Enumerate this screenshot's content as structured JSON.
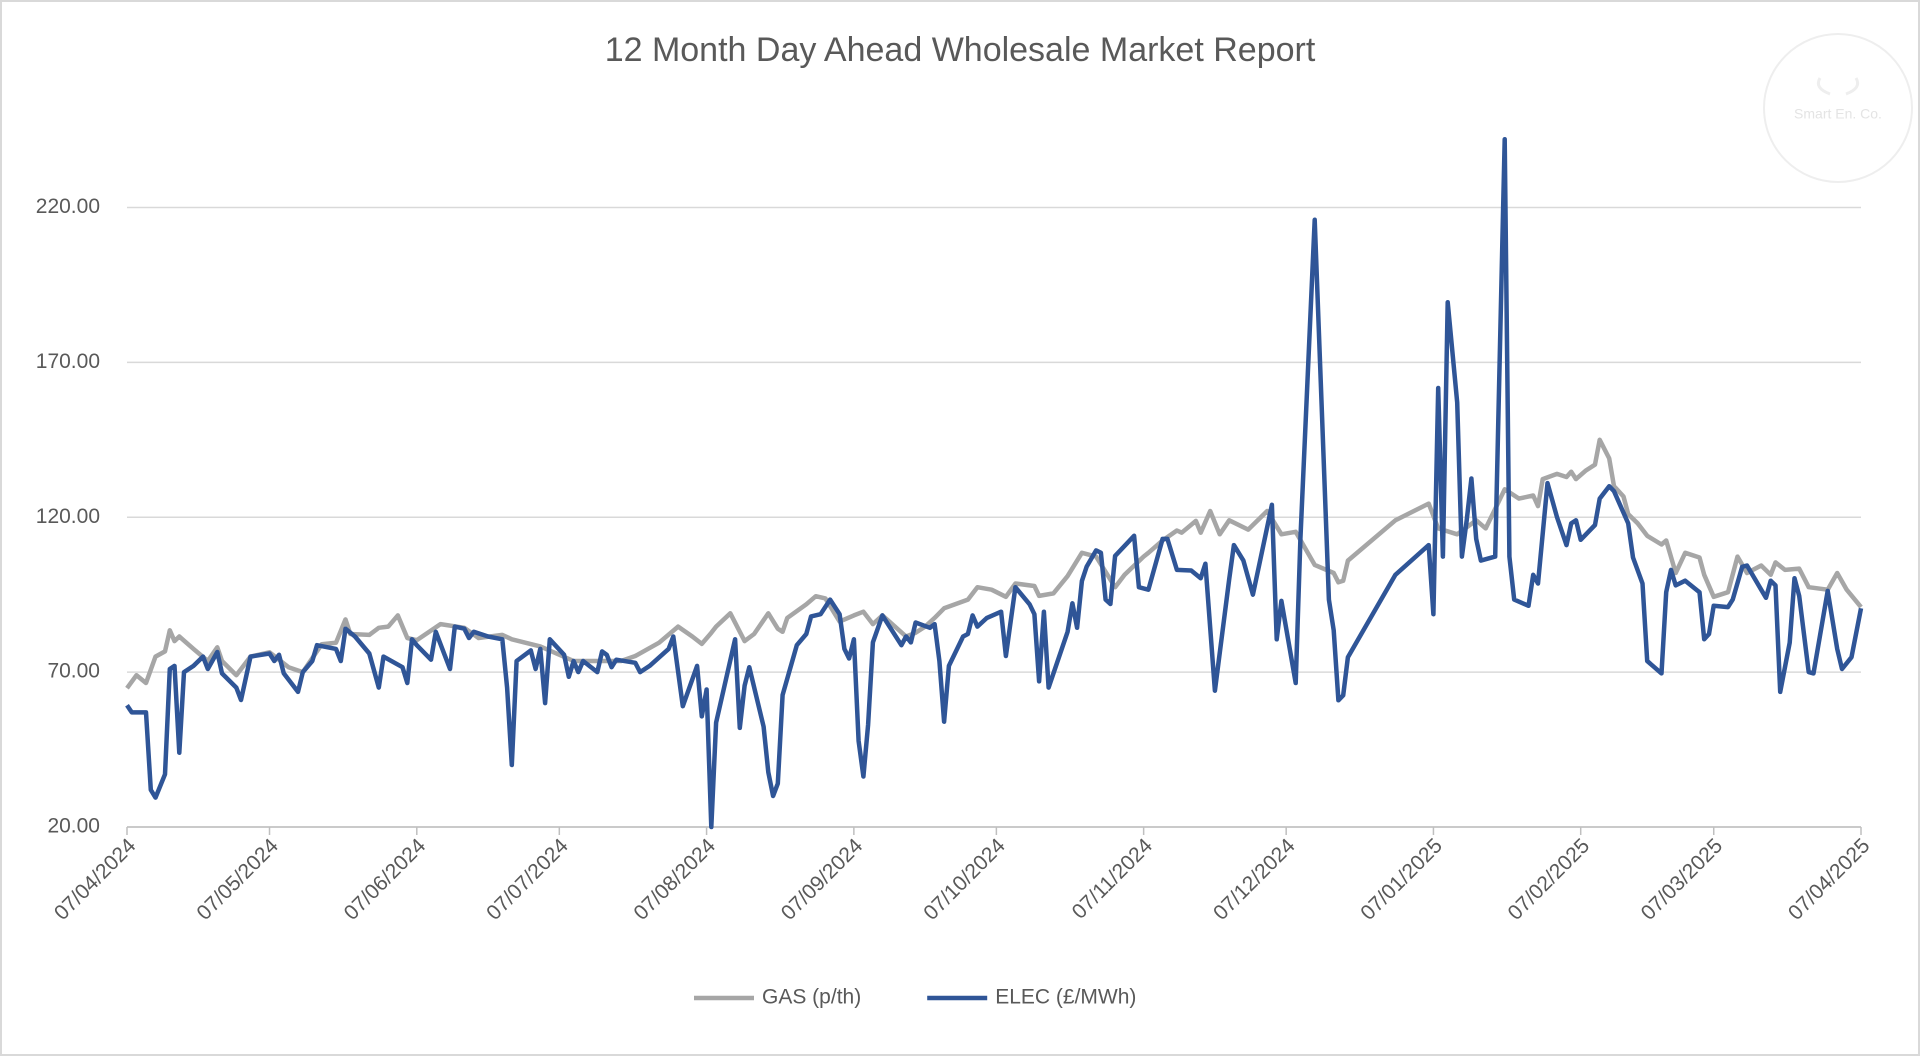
{
  "chart_data": {
    "type": "line",
    "title": "12 Month Day Ahead Wholesale Market Report",
    "watermark": "Smart En. Co.",
    "xlim": [
      "2024-04-07",
      "2025-04-07"
    ],
    "xticks": [
      {
        "value": "2024-04-07",
        "label": "07/04/2024"
      },
      {
        "value": "2024-05-07",
        "label": "07/05/2024"
      },
      {
        "value": "2024-06-07",
        "label": "07/06/2024"
      },
      {
        "value": "2024-07-07",
        "label": "07/07/2024"
      },
      {
        "value": "2024-08-07",
        "label": "07/08/2024"
      },
      {
        "value": "2024-09-07",
        "label": "07/09/2024"
      },
      {
        "value": "2024-10-07",
        "label": "07/10/2024"
      },
      {
        "value": "2024-11-07",
        "label": "07/11/2024"
      },
      {
        "value": "2024-12-07",
        "label": "07/12/2024"
      },
      {
        "value": "2025-01-07",
        "label": "07/01/2025"
      },
      {
        "value": "2025-02-07",
        "label": "07/02/2025"
      },
      {
        "value": "2025-03-07",
        "label": "07/03/2025"
      },
      {
        "value": "2025-04-07",
        "label": "07/04/2025"
      }
    ],
    "ylim": [
      20,
      245
    ],
    "yticks": [
      {
        "value": 20,
        "label": "20.00"
      },
      {
        "value": 70,
        "label": "70.00"
      },
      {
        "value": 120,
        "label": "120.00"
      },
      {
        "value": 170,
        "label": "170.00"
      },
      {
        "value": 220,
        "label": "220.00"
      }
    ],
    "grid": true,
    "legend": "bottom",
    "series": [
      {
        "name": "GAS (p/th)",
        "color": "#a6a6a6",
        "x": [
          "2024-04-07",
          "2024-04-09",
          "2024-04-11",
          "2024-04-13",
          "2024-04-15",
          "2024-04-16",
          "2024-04-17",
          "2024-04-18",
          "2024-04-21",
          "2024-04-24",
          "2024-04-26",
          "2024-04-27",
          "2024-04-30",
          "2024-05-03",
          "2024-05-07",
          "2024-05-11",
          "2024-05-14",
          "2024-05-18",
          "2024-05-21",
          "2024-05-23",
          "2024-05-24",
          "2024-05-28",
          "2024-05-30",
          "2024-06-01",
          "2024-06-03",
          "2024-06-05",
          "2024-06-07",
          "2024-06-12",
          "2024-06-17",
          "2024-06-20",
          "2024-06-25",
          "2024-06-27",
          "2024-07-03",
          "2024-07-10",
          "2024-07-15",
          "2024-07-20",
          "2024-07-23",
          "2024-07-28",
          "2024-08-01",
          "2024-08-04",
          "2024-08-06",
          "2024-08-08",
          "2024-08-09",
          "2024-08-12",
          "2024-08-15",
          "2024-08-17",
          "2024-08-20",
          "2024-08-22",
          "2024-08-23",
          "2024-08-24",
          "2024-08-28",
          "2024-08-30",
          "2024-09-01",
          "2024-09-04",
          "2024-09-07",
          "2024-09-09",
          "2024-09-11",
          "2024-09-13",
          "2024-09-18",
          "2024-09-20",
          "2024-09-22",
          "2024-09-24",
          "2024-09-26",
          "2024-10-01",
          "2024-10-03",
          "2024-10-06",
          "2024-10-09",
          "2024-10-11",
          "2024-10-15",
          "2024-10-16",
          "2024-10-19",
          "2024-10-22",
          "2024-10-25",
          "2024-10-28",
          "2024-11-01",
          "2024-11-03",
          "2024-11-07",
          "2024-11-08",
          "2024-11-11",
          "2024-11-14",
          "2024-11-15",
          "2024-11-18",
          "2024-11-19",
          "2024-11-21",
          "2024-11-23",
          "2024-11-25",
          "2024-11-29",
          "2024-12-03",
          "2024-12-06",
          "2024-12-09",
          "2024-12-13",
          "2024-12-17",
          "2024-12-18",
          "2024-12-19",
          "2024-12-20",
          "2024-12-30",
          "2025-01-06",
          "2025-01-08",
          "2025-01-12",
          "2025-01-16",
          "2025-01-18",
          "2025-01-22",
          "2025-01-25",
          "2025-01-28",
          "2025-01-29",
          "2025-01-30",
          "2025-02-02",
          "2025-02-04",
          "2025-02-05",
          "2025-02-06",
          "2025-02-08",
          "2025-02-10",
          "2025-02-11",
          "2025-02-13",
          "2025-02-14",
          "2025-02-16",
          "2025-02-17",
          "2025-02-19",
          "2025-02-21",
          "2025-02-24",
          "2025-02-25",
          "2025-02-27",
          "2025-03-01",
          "2025-03-04",
          "2025-03-05",
          "2025-03-07",
          "2025-03-10",
          "2025-03-12",
          "2025-03-14",
          "2025-03-17",
          "2025-03-19",
          "2025-03-20",
          "2025-03-22",
          "2025-03-25",
          "2025-03-27",
          "2025-03-31",
          "2025-04-02",
          "2025-04-04",
          "2025-04-07"
        ],
        "values": [
          64.8,
          69,
          66.5,
          75,
          76.7,
          83.5,
          80,
          81.5,
          77.5,
          73.6,
          78,
          73.6,
          69,
          75,
          76.4,
          71.6,
          70,
          79,
          79.5,
          87,
          82.3,
          82,
          84.3,
          84.7,
          88.3,
          81,
          80.3,
          85.5,
          84.3,
          81,
          82,
          80.6,
          78.3,
          73.6,
          73.6,
          73.6,
          75.2,
          79.5,
          84.7,
          81.5,
          79.1,
          82.7,
          84.7,
          89,
          80,
          82.3,
          89,
          84,
          83,
          87.5,
          91.9,
          94.5,
          93.8,
          86.3,
          88.3,
          89.5,
          85.5,
          88.3,
          81.5,
          82.7,
          84.7,
          87.5,
          90.6,
          93.4,
          97.4,
          96.6,
          94.3,
          98.6,
          97.8,
          94.6,
          95.4,
          101,
          108.5,
          107.3,
          97.4,
          101.4,
          107.3,
          108.5,
          112.5,
          115.7,
          115,
          118.8,
          115,
          122,
          114.5,
          119,
          116,
          122,
          114.5,
          115.3,
          104.6,
          102,
          99,
          99.5,
          106,
          119,
          124.4,
          116.4,
          114.5,
          119,
          116.4,
          129,
          126,
          127,
          123.6,
          132.3,
          134,
          133,
          134.7,
          132.3,
          135,
          137,
          145,
          139,
          130,
          126.7,
          121,
          118,
          114,
          111.2,
          112.5,
          102,
          108.5,
          107,
          101.4,
          94.3,
          95.8,
          107.3,
          102,
          104.4,
          101.4,
          105.4,
          103,
          103.4,
          97.4,
          96.6,
          102,
          96.6,
          91
        ]
      },
      {
        "name": "ELEC (£/MWh)",
        "color": "#2f5597",
        "x": [
          "2024-04-07",
          "2024-04-08",
          "2024-04-11",
          "2024-04-12",
          "2024-04-13",
          "2024-04-15",
          "2024-04-16",
          "2024-04-17",
          "2024-04-18",
          "2024-04-19",
          "2024-04-21",
          "2024-04-23",
          "2024-04-24",
          "2024-04-26",
          "2024-04-27",
          "2024-04-30",
          "2024-05-01",
          "2024-05-03",
          "2024-05-07",
          "2024-05-08",
          "2024-05-09",
          "2024-05-10",
          "2024-05-13",
          "2024-05-14",
          "2024-05-16",
          "2024-05-17",
          "2024-05-21",
          "2024-05-22",
          "2024-05-23",
          "2024-05-25",
          "2024-05-28",
          "2024-05-30",
          "2024-05-31",
          "2024-06-04",
          "2024-06-05",
          "2024-06-06",
          "2024-06-07",
          "2024-06-10",
          "2024-06-11",
          "2024-06-14",
          "2024-06-15",
          "2024-06-17",
          "2024-06-18",
          "2024-06-19",
          "2024-06-22",
          "2024-06-25",
          "2024-06-26",
          "2024-06-27",
          "2024-06-28",
          "2024-07-01",
          "2024-07-02",
          "2024-07-03",
          "2024-07-04",
          "2024-07-05",
          "2024-07-08",
          "2024-07-09",
          "2024-07-10",
          "2024-07-11",
          "2024-07-12",
          "2024-07-15",
          "2024-07-16",
          "2024-07-17",
          "2024-07-18",
          "2024-07-19",
          "2024-07-23",
          "2024-07-24",
          "2024-07-26",
          "2024-07-30",
          "2024-07-31",
          "2024-08-02",
          "2024-08-05",
          "2024-08-06",
          "2024-08-07",
          "2024-08-08",
          "2024-08-09",
          "2024-08-13",
          "2024-08-14",
          "2024-08-15",
          "2024-08-16",
          "2024-08-19",
          "2024-08-20",
          "2024-08-21",
          "2024-08-22",
          "2024-08-23",
          "2024-08-26",
          "2024-08-28",
          "2024-08-29",
          "2024-08-31",
          "2024-09-02",
          "2024-09-04",
          "2024-09-05",
          "2024-09-06",
          "2024-09-07",
          "2024-09-08",
          "2024-09-09",
          "2024-09-10",
          "2024-09-11",
          "2024-09-13",
          "2024-09-15",
          "2024-09-17",
          "2024-09-18",
          "2024-09-19",
          "2024-09-20",
          "2024-09-23",
          "2024-09-24",
          "2024-09-25",
          "2024-09-26",
          "2024-09-27",
          "2024-09-30",
          "2024-10-01",
          "2024-10-02",
          "2024-10-03",
          "2024-10-05",
          "2024-10-08",
          "2024-10-09",
          "2024-10-11",
          "2024-10-14",
          "2024-10-15",
          "2024-10-16",
          "2024-10-17",
          "2024-10-18",
          "2024-10-22",
          "2024-10-23",
          "2024-10-24",
          "2024-10-25",
          "2024-10-26",
          "2024-10-28",
          "2024-10-29",
          "2024-10-30",
          "2024-10-31",
          "2024-11-01",
          "2024-11-05",
          "2024-11-06",
          "2024-11-08",
          "2024-11-11",
          "2024-11-12",
          "2024-11-14",
          "2024-11-17",
          "2024-11-19",
          "2024-11-20",
          "2024-11-22",
          "2024-11-25",
          "2024-11-26",
          "2024-11-28",
          "2024-11-30",
          "2024-12-04",
          "2024-12-05",
          "2024-12-06",
          "2024-12-09",
          "2024-12-10",
          "2024-12-13",
          "2024-12-16",
          "2024-12-17",
          "2024-12-18",
          "2024-12-19",
          "2024-12-20",
          "2024-12-30",
          "2025-01-06",
          "2025-01-07",
          "2025-01-08",
          "2025-01-09",
          "2025-01-10",
          "2025-01-12",
          "2025-01-13",
          "2025-01-14",
          "2025-01-15",
          "2025-01-16",
          "2025-01-17",
          "2025-01-20",
          "2025-01-22",
          "2025-01-23",
          "2025-01-24",
          "2025-01-27",
          "2025-01-28",
          "2025-01-29",
          "2025-01-31",
          "2025-02-02",
          "2025-02-04",
          "2025-02-05",
          "2025-02-06",
          "2025-02-07",
          "2025-02-10",
          "2025-02-11",
          "2025-02-13",
          "2025-02-14",
          "2025-02-17",
          "2025-02-18",
          "2025-02-20",
          "2025-02-21",
          "2025-02-24",
          "2025-02-25",
          "2025-02-26",
          "2025-02-27",
          "2025-03-01",
          "2025-03-04",
          "2025-03-05",
          "2025-03-06",
          "2025-03-07",
          "2025-03-10",
          "2025-03-11",
          "2025-03-13",
          "2025-03-14",
          "2025-03-17",
          "2025-03-18",
          "2025-03-19",
          "2025-03-20",
          "2025-03-21",
          "2025-03-23",
          "2025-03-24",
          "2025-03-25",
          "2025-03-27",
          "2025-03-28",
          "2025-03-31",
          "2025-04-02",
          "2025-04-03",
          "2025-04-05",
          "2025-04-07"
        ],
        "values": [
          59.3,
          57,
          57,
          32,
          29.5,
          37,
          71,
          72,
          44,
          70,
          72,
          75,
          71,
          76.5,
          69.6,
          65,
          61,
          75,
          76,
          73.6,
          75.6,
          69.6,
          63.6,
          70,
          73.6,
          78.7,
          77.5,
          73.6,
          84,
          81.5,
          76,
          65,
          75,
          71.6,
          66.5,
          80.6,
          78.7,
          74,
          83,
          71,
          84.7,
          84,
          81,
          83,
          81.5,
          80.6,
          65,
          40,
          73.6,
          77,
          71,
          77.5,
          60,
          80.6,
          75.6,
          68.5,
          73.6,
          70,
          73.6,
          70,
          76.7,
          75.6,
          71.6,
          74,
          73,
          70,
          72,
          77.5,
          81.5,
          59,
          72,
          55.7,
          64.4,
          20,
          53.7,
          80.6,
          52,
          65.6,
          71.6,
          52.4,
          37.7,
          30,
          34,
          62.6,
          78.7,
          82.3,
          88,
          88.7,
          93.4,
          88.7,
          77.5,
          74.4,
          80.6,
          47.8,
          36.3,
          53,
          79.6,
          88.3,
          83.5,
          78.7,
          81.5,
          79.6,
          86,
          84.3,
          85.5,
          73.6,
          54,
          72,
          81.5,
          82.3,
          88.3,
          84.7,
          87.5,
          89.5,
          75.2,
          97.4,
          91.9,
          88.7,
          67,
          89.5,
          65,
          83,
          92.2,
          84.3,
          99.4,
          104,
          109.3,
          108.5,
          93.4,
          92,
          107.5,
          114,
          97.4,
          96.6,
          113,
          113,
          103,
          102.8,
          100.3,
          105,
          64,
          100,
          111,
          106,
          95,
          124,
          80.6,
          93,
          66.5,
          113,
          216,
          93.4,
          83.5,
          60.9,
          62.5,
          74.8,
          101.4,
          111,
          88.7,
          161.7,
          107.3,
          189.4,
          157,
          107.3,
          119,
          132.5,
          113,
          106,
          107.3,
          242,
          107.3,
          93.4,
          91.4,
          101.4,
          98.6,
          131,
          120,
          111,
          118,
          119,
          112.7,
          117.5,
          126,
          130,
          128.4,
          118,
          107,
          98.6,
          73.6,
          69.6,
          95.8,
          103,
          98,
          99.5,
          95.8,
          80.6,
          82.3,
          91.4,
          91,
          93.4,
          104,
          104.4,
          96.6,
          94,
          99.5,
          98,
          63.6,
          79.5,
          100.3,
          94.6,
          70,
          69.6,
          96.2,
          77.5,
          71,
          74.8,
          90.6
        ]
      }
    ]
  }
}
